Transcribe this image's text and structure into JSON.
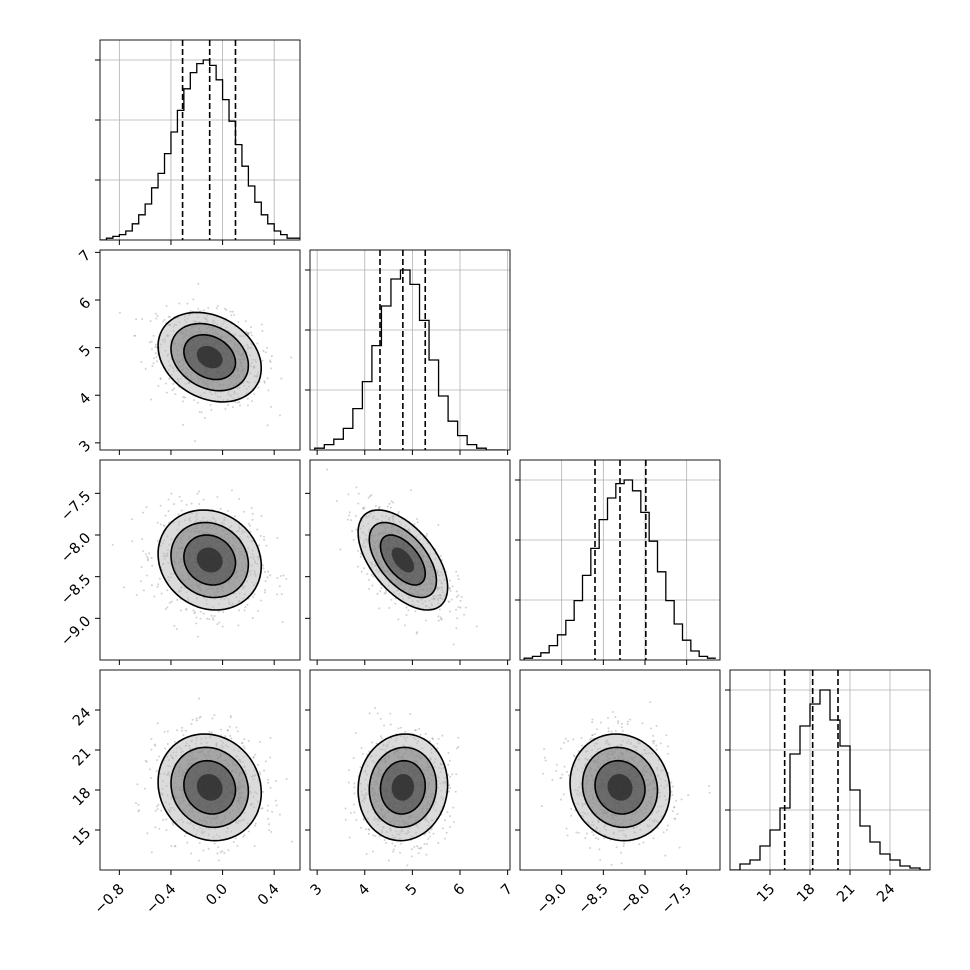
{
  "chart_data": {
    "type": "corner",
    "grid": true,
    "parameters": [
      {
        "range": [
          -0.95,
          0.6
        ],
        "ticks": [
          -0.8,
          -0.4,
          0.0,
          0.4
        ],
        "tick_labels": [
          "−0.8",
          "−0.4",
          "0.0",
          "0.4"
        ],
        "quantiles": [
          -0.31,
          -0.1,
          0.1
        ],
        "mean": -0.1,
        "sd": 0.2,
        "hist_bins": [
          -0.95,
          -0.9,
          -0.85,
          -0.8,
          -0.75,
          -0.7,
          -0.65,
          -0.6,
          -0.55,
          -0.5,
          -0.45,
          -0.4,
          -0.35,
          -0.3,
          -0.25,
          -0.2,
          -0.15,
          -0.1,
          -0.05,
          0.0,
          0.05,
          0.1,
          0.15,
          0.2,
          0.25,
          0.3,
          0.35,
          0.4,
          0.45,
          0.5,
          0.55
        ],
        "hist_counts": [
          0,
          1,
          2,
          3,
          5,
          9,
          14,
          20,
          29,
          37,
          48,
          60,
          72,
          84,
          93,
          98,
          100,
          97,
          89,
          78,
          66,
          53,
          41,
          30,
          21,
          14,
          9,
          5,
          3,
          1,
          1
        ]
      },
      {
        "range": [
          2.85,
          7.05
        ],
        "ticks": [
          3,
          4,
          5,
          6,
          7
        ],
        "tick_labels": [
          "3",
          "4",
          "5",
          "6",
          "7"
        ],
        "quantiles": [
          4.32,
          4.8,
          5.27
        ],
        "mean": 4.8,
        "sd": 0.47,
        "hist_bins": [
          2.95,
          3.15,
          3.35,
          3.55,
          3.75,
          3.95,
          4.15,
          4.35,
          4.55,
          4.75,
          4.95,
          5.15,
          5.35,
          5.55,
          5.75,
          5.95,
          6.15,
          6.35,
          6.55,
          6.75
        ],
        "hist_counts": [
          1,
          3,
          6,
          12,
          23,
          38,
          58,
          80,
          95,
          100,
          92,
          72,
          50,
          30,
          16,
          8,
          3,
          1,
          0,
          0
        ]
      },
      {
        "range": [
          -9.5,
          -7.1
        ],
        "ticks": [
          -9.0,
          -8.5,
          -8.0,
          -7.5
        ],
        "tick_labels": [
          "−9.0",
          "−8.5",
          "−8.0",
          "−7.5"
        ],
        "quantiles": [
          -8.6,
          -8.3,
          -7.99
        ],
        "mean": -8.3,
        "sd": 0.3,
        "hist_bins": [
          -9.45,
          -9.35,
          -9.25,
          -9.15,
          -9.05,
          -8.95,
          -8.85,
          -8.75,
          -8.65,
          -8.55,
          -8.45,
          -8.35,
          -8.25,
          -8.15,
          -8.05,
          -7.95,
          -7.85,
          -7.75,
          -7.65,
          -7.55,
          -7.45,
          -7.35,
          -7.25
        ],
        "hist_counts": [
          1,
          2,
          4,
          8,
          14,
          22,
          33,
          47,
          62,
          78,
          90,
          98,
          100,
          94,
          82,
          66,
          49,
          33,
          20,
          11,
          5,
          2,
          1
        ]
      },
      {
        "range": [
          12.0,
          27.0
        ],
        "ticks": [
          15,
          18,
          21,
          24
        ],
        "tick_labels": [
          "15",
          "18",
          "21",
          "24"
        ],
        "quantiles": [
          16.1,
          18.2,
          20.1
        ],
        "mean": 18.2,
        "sd": 2.0,
        "hist_bins": [
          12.0,
          12.75,
          13.5,
          14.25,
          15.0,
          15.75,
          16.5,
          17.25,
          18.0,
          18.75,
          19.5,
          20.25,
          21.0,
          21.75,
          22.5,
          23.25,
          24.0,
          24.75,
          25.5,
          26.25
        ],
        "hist_counts": [
          0,
          3,
          5,
          12,
          20,
          31,
          58,
          72,
          83,
          90,
          75,
          62,
          40,
          22,
          14,
          8,
          5,
          2,
          1,
          0
        ]
      }
    ],
    "correlations": [
      [
        1,
        -0.25,
        -0.12,
        -0.1
      ],
      [
        -0.25,
        1,
        -0.55,
        0.05
      ],
      [
        -0.12,
        -0.55,
        1,
        -0.08
      ],
      [
        -0.1,
        0.05,
        -0.08,
        1
      ]
    ],
    "contour_levels_sigma": [
      0.5,
      1.0,
      1.5,
      2.0
    ],
    "contour_shading": [
      "#101010",
      "#3c3c3c",
      "#7a7a7a",
      "#bdbdbd"
    ]
  }
}
